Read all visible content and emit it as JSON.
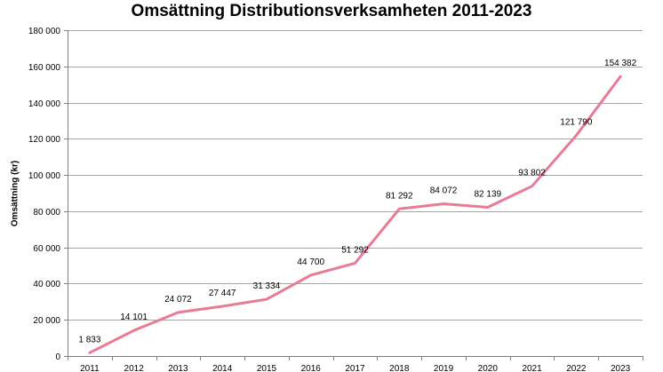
{
  "chart_data": {
    "type": "line",
    "title": "Omsättning Distributionsverksamheten 2011-2023",
    "xlabel": "",
    "ylabel": "Omsättning (kr)",
    "categories": [
      "2011",
      "2012",
      "2013",
      "2014",
      "2015",
      "2016",
      "2017",
      "2018",
      "2019",
      "2020",
      "2021",
      "2022",
      "2023"
    ],
    "series": [
      {
        "values": [
          1833,
          14101,
          24072,
          27447,
          31334,
          44700,
          51292,
          81292,
          84072,
          82139,
          93802,
          121790,
          154382
        ],
        "data_labels": [
          "1 833",
          "14 101",
          "24 072",
          "27 447",
          "31 334",
          "44 700",
          "51 292",
          "81 292",
          "84 072",
          "82 139",
          "93 802",
          "121 790",
          "154 382"
        ],
        "color": "#e87b95"
      }
    ],
    "ylim": [
      0,
      180000
    ],
    "yticks": [
      0,
      20000,
      40000,
      60000,
      80000,
      100000,
      120000,
      140000,
      160000,
      180000
    ],
    "ytick_labels": [
      "0",
      "20 000",
      "40 000",
      "60 000",
      "80 000",
      "100 000",
      "120 000",
      "140 000",
      "160 000",
      "180 000"
    ],
    "grid": true,
    "gridline_color": "#a6a6a6",
    "legend": "none"
  }
}
